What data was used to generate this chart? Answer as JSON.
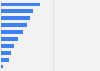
{
  "values": [
    3.8,
    3.1,
    2.85,
    2.5,
    2.1,
    1.65,
    1.3,
    1.0,
    0.75,
    0.22
  ],
  "bar_color": "#3d82f0",
  "background_color": "#f2f2f2",
  "bar_height": 0.55,
  "xlim": [
    0,
    9.5
  ],
  "grid_color": "#d9d9d9",
  "n_gridlines": 4
}
